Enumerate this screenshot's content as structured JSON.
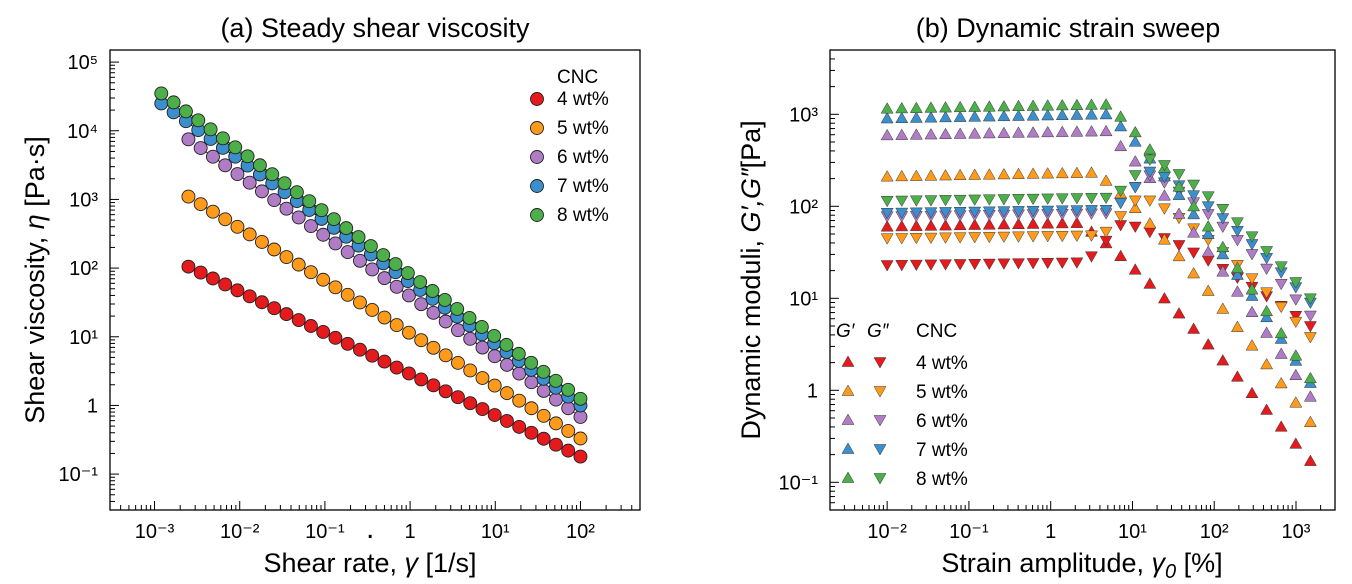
{
  "chart_data": [
    {
      "type": "scatter",
      "title": "(a) Steady shear viscosity",
      "xlabel": "Shear rate, γ̇ [1/s]",
      "ylabel": "Shear viscosity, η [Pa·s]",
      "xscale": "log",
      "yscale": "log",
      "xlim": [
        0.0003,
        500
      ],
      "ylim": [
        0.03,
        150000
      ],
      "xticks": [
        0.001,
        0.01,
        0.1,
        1,
        10,
        100
      ],
      "xtick_labels": [
        "10⁻³",
        "10⁻²",
        "10⁻¹",
        "1",
        "10¹",
        "10²"
      ],
      "yticks": [
        0.1,
        1,
        10,
        100,
        1000,
        10000,
        100000
      ],
      "ytick_labels": [
        "10⁻¹",
        "1",
        "10¹",
        "10²",
        "10³",
        "10⁴",
        "10⁵"
      ],
      "grid": false,
      "legend_title": "CNC",
      "legend_position": "top-right",
      "series": [
        {
          "name": "4 wt%",
          "color": "#e41a1c",
          "x_range": [
            0.0025,
            100
          ],
          "y_range": [
            105,
            0.18
          ]
        },
        {
          "name": "5 wt%",
          "color": "#ff9a1a",
          "x_range": [
            0.0025,
            100
          ],
          "y_range": [
            1100,
            0.33
          ]
        },
        {
          "name": "6 wt%",
          "color": "#b07cc6",
          "x_range": [
            0.0025,
            100
          ],
          "y_range": [
            7500,
            0.68
          ]
        },
        {
          "name": "7 wt%",
          "color": "#3a8fcc",
          "x_range": [
            0.0012,
            100
          ],
          "y_range": [
            25000,
            1.0
          ]
        },
        {
          "name": "8 wt%",
          "color": "#4daf4a",
          "x_range": [
            0.0012,
            100
          ],
          "y_range": [
            35000,
            1.25
          ]
        }
      ]
    },
    {
      "type": "scatter",
      "title": "(b) Dynamic strain sweep",
      "xlabel": "Strain amplitude, γ₀ [%]",
      "ylabel": "Dynamic moduli, G′,G″[Pa]",
      "xscale": "log",
      "yscale": "log",
      "xlim": [
        0.002,
        3000
      ],
      "ylim": [
        0.05,
        5000
      ],
      "xticks": [
        0.01,
        0.1,
        1,
        10,
        100,
        1000
      ],
      "xtick_labels": [
        "10⁻²",
        "10⁻¹",
        "1",
        "10¹",
        "10²",
        "10³"
      ],
      "yticks": [
        0.1,
        1,
        10,
        100,
        1000
      ],
      "ytick_labels": [
        "10⁻¹",
        "1",
        "10¹",
        "10²",
        "10³"
      ],
      "grid": false,
      "legend_title": "CNC",
      "legend_column_labels": [
        "G′",
        "G″"
      ],
      "legend_position": "bottom-left",
      "series": [
        {
          "name": "4 wt%",
          "color": "#e41a1c",
          "G_prime_plateau": 60,
          "G_double_prime_plateau": 23,
          "G_prime_end": 0.17,
          "G_double_prime_end": 5
        },
        {
          "name": "5 wt%",
          "color": "#ff9a1a",
          "G_prime_plateau": 210,
          "G_double_prime_plateau": 45,
          "G_prime_end": 0.45,
          "G_double_prime_end": 3.8
        },
        {
          "name": "6 wt%",
          "color": "#b07cc6",
          "G_prime_plateau": 590,
          "G_double_prime_plateau": 78,
          "G_prime_end": 0.85,
          "G_double_prime_end": 6.5
        },
        {
          "name": "7 wt%",
          "color": "#3a8fcc",
          "G_prime_plateau": 900,
          "G_double_prime_plateau": 85,
          "G_prime_end": 1.2,
          "G_double_prime_end": 9
        },
        {
          "name": "8 wt%",
          "color": "#4daf4a",
          "G_prime_plateau": 1150,
          "G_double_prime_plateau": 115,
          "G_prime_end": 1.35,
          "G_double_prime_end": 10
        }
      ]
    }
  ]
}
